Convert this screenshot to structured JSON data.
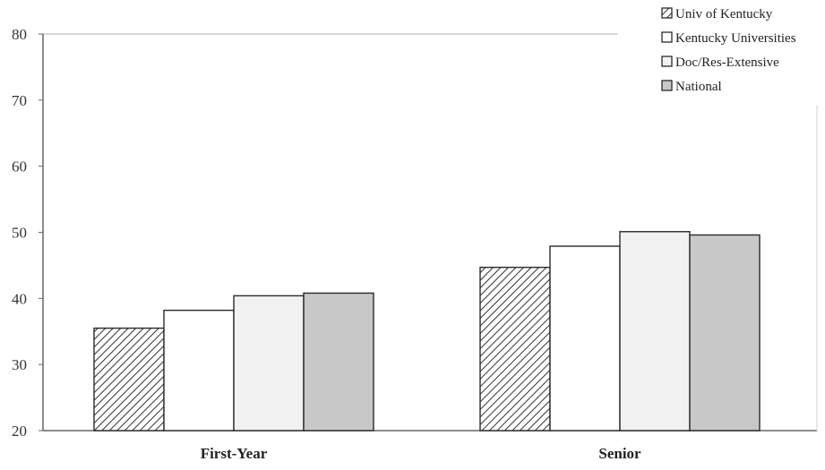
{
  "chart_data": {
    "type": "bar",
    "categories": [
      "First-Year",
      "Senior"
    ],
    "series": [
      {
        "name": "Univ of Kentucky",
        "values": [
          35.5,
          44.7
        ],
        "fill": "hatch",
        "color": "#333333"
      },
      {
        "name": "Kentucky Universities",
        "values": [
          38.2,
          47.9
        ],
        "fill": "solid",
        "color": "#ffffff"
      },
      {
        "name": "Doc/Res-Extensive",
        "values": [
          40.4,
          50.1
        ],
        "fill": "solid",
        "color": "#f1f1f1"
      },
      {
        "name": "National",
        "values": [
          40.8,
          49.6
        ],
        "fill": "solid",
        "color": "#c8c8c8"
      }
    ],
    "yticks": [
      20,
      30,
      40,
      50,
      60,
      70,
      80
    ],
    "ylim": [
      20,
      80
    ],
    "title": "",
    "xlabel": "",
    "ylabel": "",
    "grid": false,
    "legend_position": "top-right"
  }
}
